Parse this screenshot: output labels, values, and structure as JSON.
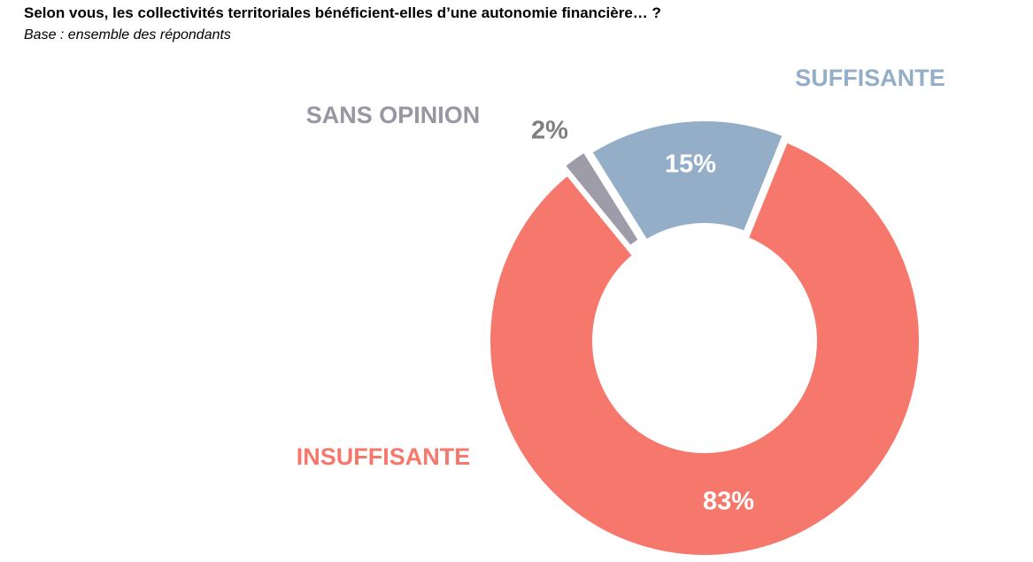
{
  "chart_data": {
    "type": "donut",
    "title": "Selon vous, les collectivités territoriales bénéficient-elles d’une autonomie financière… ?",
    "subtitle": "Base : ensemble des répondants",
    "categories": [
      "SUFFISANTE",
      "INSUFFISANTE",
      "SANS OPINION"
    ],
    "values": [
      15,
      83,
      2
    ],
    "value_labels": [
      "15%",
      "83%",
      "2%"
    ],
    "colors": [
      "#94aec8",
      "#f6786d",
      "#9f9caa"
    ]
  }
}
